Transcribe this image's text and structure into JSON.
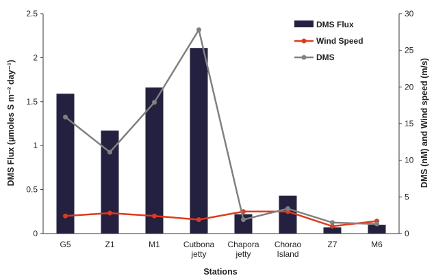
{
  "chart_data": {
    "type": "bar",
    "categories": [
      "G5",
      "Z1",
      "M1",
      "Cutbona jetty",
      "Chapora jetty",
      "Chorao Island",
      "Z7",
      "M6"
    ],
    "xlabel": "Stations",
    "ylabel_left": "DMS Flux (µmoles S m⁻² day⁻¹)",
    "ylabel_right": "DMS (nM) and Wind speed (m/s)",
    "ylim_left": [
      0,
      2.5
    ],
    "ylim_right": [
      0,
      30
    ],
    "yticks_left": [
      "0",
      "0.5",
      "1",
      "1.5",
      "2",
      "2.5"
    ],
    "yticks_right": [
      "0",
      "5",
      "10",
      "15",
      "20",
      "25",
      "30"
    ],
    "grid": false,
    "legend_position": "top-right",
    "series": [
      {
        "name": "DMS Flux",
        "kind": "bar",
        "axis": "left",
        "color": "#24203f",
        "values": [
          1.59,
          1.17,
          1.66,
          2.11,
          0.22,
          0.43,
          0.07,
          0.1
        ]
      },
      {
        "name": "Wind Speed",
        "kind": "line",
        "axis": "right",
        "color": "#e0391c",
        "values": [
          2.4,
          2.8,
          2.4,
          1.9,
          3.0,
          3.0,
          1.0,
          1.7
        ]
      },
      {
        "name": "DMS",
        "kind": "line",
        "axis": "right",
        "color": "#808080",
        "values": [
          15.9,
          11.1,
          17.9,
          27.8,
          1.9,
          3.4,
          1.5,
          1.3
        ]
      }
    ]
  }
}
